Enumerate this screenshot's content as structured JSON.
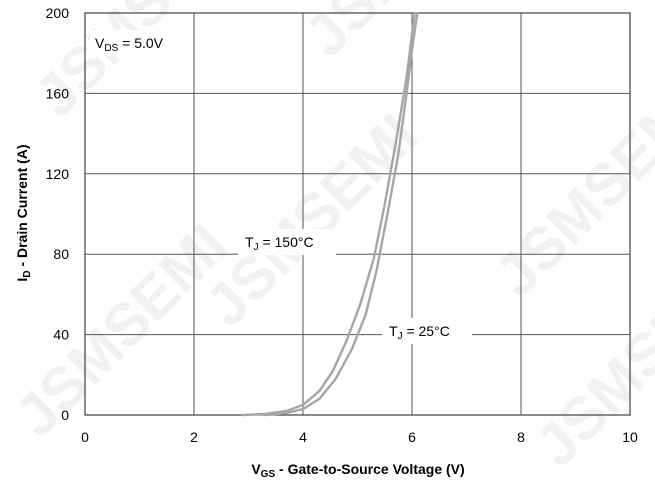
{
  "chart_data": {
    "type": "line",
    "xlabel_main": "V",
    "xlabel_sub": "GS",
    "xlabel_rest": " - Gate-to-Source Voltage (V)",
    "ylabel_main": "I",
    "ylabel_sub": "D",
    "ylabel_rest": " - Drain Current (A)",
    "xlim": [
      0,
      10
    ],
    "ylim": [
      0,
      200
    ],
    "x_ticks": [
      0,
      2,
      4,
      6,
      8,
      10
    ],
    "y_ticks": [
      0,
      40,
      80,
      120,
      160,
      200
    ],
    "grid": true,
    "line_color": "#a6a6a6",
    "condition": {
      "main": "V",
      "sub": "DS",
      "rest": " = 5.0V"
    },
    "watermark": "JSMSEMI",
    "series": [
      {
        "name_main": "T",
        "name_sub": "J",
        "name_rest": " = 150°C",
        "x": [
          2.9,
          3.3,
          3.7,
          4.0,
          4.3,
          4.55,
          4.8,
          5.05,
          5.3,
          5.5,
          5.7,
          5.9,
          6.05
        ],
        "y": [
          0,
          0.5,
          2,
          5,
          12,
          22,
          37,
          55,
          78,
          105,
          135,
          168,
          200
        ]
      },
      {
        "name_main": "T",
        "name_sub": "J",
        "name_rest": " = 25°C",
        "x": [
          3.3,
          3.7,
          4.0,
          4.3,
          4.6,
          4.9,
          5.15,
          5.35,
          5.55,
          5.75,
          5.9,
          6.0,
          6.1
        ],
        "y": [
          0,
          1,
          3,
          8,
          18,
          33,
          50,
          72,
          100,
          130,
          160,
          182,
          200
        ]
      }
    ]
  }
}
